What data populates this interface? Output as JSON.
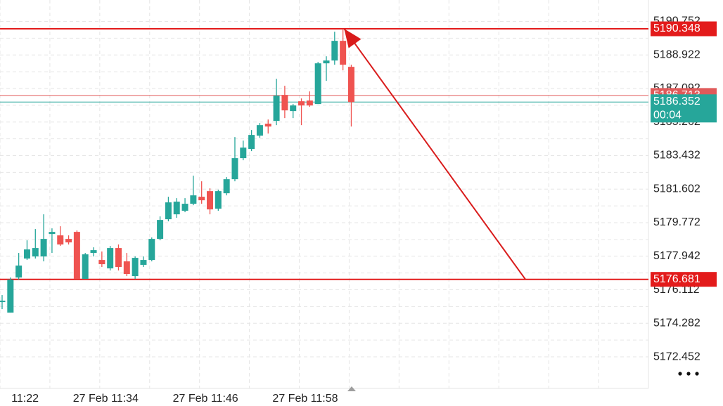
{
  "chart_data": {
    "type": "candlestick",
    "x": [
      0,
      1,
      2,
      3,
      4,
      5,
      6,
      7,
      8,
      9,
      10,
      11,
      12,
      13,
      14,
      15,
      16,
      17,
      18,
      19,
      20,
      21,
      22,
      23,
      24,
      25,
      26,
      27,
      28,
      29,
      30,
      31,
      32,
      33,
      34,
      35,
      36,
      37,
      38,
      39,
      40,
      41,
      42
    ],
    "open": [
      5175.44,
      5174.866,
      5176.781,
      5177.815,
      5177.93,
      5177.93,
      5179.156,
      5179.08,
      5178.888,
      5179.271,
      5176.704,
      5178.122,
      5177.739,
      5177.279,
      5178.39,
      5177.662,
      5176.858,
      5177.471,
      5177.739,
      5178.888,
      5179.961,
      5180.229,
      5180.42,
      5180.804,
      5181.187,
      5181.493,
      5180.535,
      5181.378,
      5182.144,
      5183.294,
      5183.792,
      5184.52,
      5185.171,
      5185.324,
      5186.742,
      5185.861,
      5186.397,
      5186.435,
      5186.244,
      5188.466,
      5188.619,
      5189.692,
      5188.274
    ],
    "high": [
      5175.823,
      5176.781,
      5178.122,
      5178.811,
      5179.424,
      5180.229,
      5179.463,
      5179.578,
      5179.08,
      5179.348,
      5178.122,
      5178.428,
      5178.199,
      5178.505,
      5178.582,
      5178.122,
      5177.93,
      5177.93,
      5178.965,
      5180.114,
      5181.187,
      5181.11,
      5181.11,
      5182.336,
      5182.03,
      5181.646,
      5181.57,
      5182.259,
      5184.443,
      5184.251,
      5184.826,
      5185.209,
      5185.401,
      5187.623,
      5187.24,
      5186.244,
      5186.55,
      5186.933,
      5188.542,
      5188.849,
      5190.19,
      5190.348,
      5188.389
    ],
    "low": [
      5175.057,
      5174.866,
      5176.666,
      5177.739,
      5177.815,
      5177.662,
      5178.122,
      5178.505,
      5178.582,
      5176.704,
      5176.704,
      5177.93,
      5177.356,
      5177.164,
      5177.164,
      5176.858,
      5176.704,
      5177.356,
      5177.662,
      5178.811,
      5179.846,
      5180.037,
      5180.344,
      5180.727,
      5180.804,
      5180.229,
      5180.42,
      5181.263,
      5182.03,
      5183.179,
      5183.677,
      5184.405,
      5184.635,
      5185.094,
      5185.477,
      5185.477,
      5185.094,
      5186.09,
      5186.244,
      5187.508,
      5188.389,
      5188.082,
      5185.018
    ],
    "close": [
      5175.517,
      5176.666,
      5177.432,
      5178.313,
      5178.39,
      5178.888,
      5179.271,
      5178.582,
      5178.697,
      5176.704,
      5178.045,
      5178.275,
      5177.509,
      5178.39,
      5177.356,
      5176.973,
      5177.854,
      5177.739,
      5178.888,
      5179.922,
      5180.88,
      5180.919,
      5180.804,
      5181.263,
      5180.995,
      5180.497,
      5181.493,
      5182.144,
      5183.294,
      5183.868,
      5184.558,
      5185.094,
      5185.018,
      5186.703,
      5185.899,
      5186.167,
      5186.167,
      5186.167,
      5188.466,
      5188.619,
      5189.692,
      5188.389,
      5186.352
    ],
    "up_color": "#26a69a",
    "down_color": "#ef5350",
    "xlim": [
      0,
      78
    ],
    "ylim": [
      5170.73,
      5191.92
    ],
    "xticks": [
      {
        "value": 0,
        "label": "11:22"
      },
      {
        "value": 12,
        "label": "27 Feb 11:34"
      },
      {
        "value": 24,
        "label": "27 Feb 11:46"
      },
      {
        "value": 36,
        "label": "27 Feb 11:58"
      }
    ],
    "yticks": [
      5190.752,
      5188.922,
      5187.092,
      5185.262,
      5183.432,
      5181.602,
      5179.772,
      5177.942,
      5176.112,
      5174.282,
      5172.452
    ],
    "grid": true,
    "levels": [
      {
        "value": 5190.348,
        "color": "#e31b1b",
        "thick": true
      },
      {
        "value": 5186.713,
        "color": "#e05a5a",
        "thick": false
      },
      {
        "value": 5186.352,
        "color": "#26a69a",
        "thick": false,
        "countdown": "00:04"
      },
      {
        "value": 5176.681,
        "color": "#e31b1b",
        "thick": true
      }
    ],
    "arrow": {
      "x": [
        41.4,
        63.2
      ],
      "y": [
        5190.348,
        5176.681
      ],
      "color": "#d91c1c"
    }
  }
}
